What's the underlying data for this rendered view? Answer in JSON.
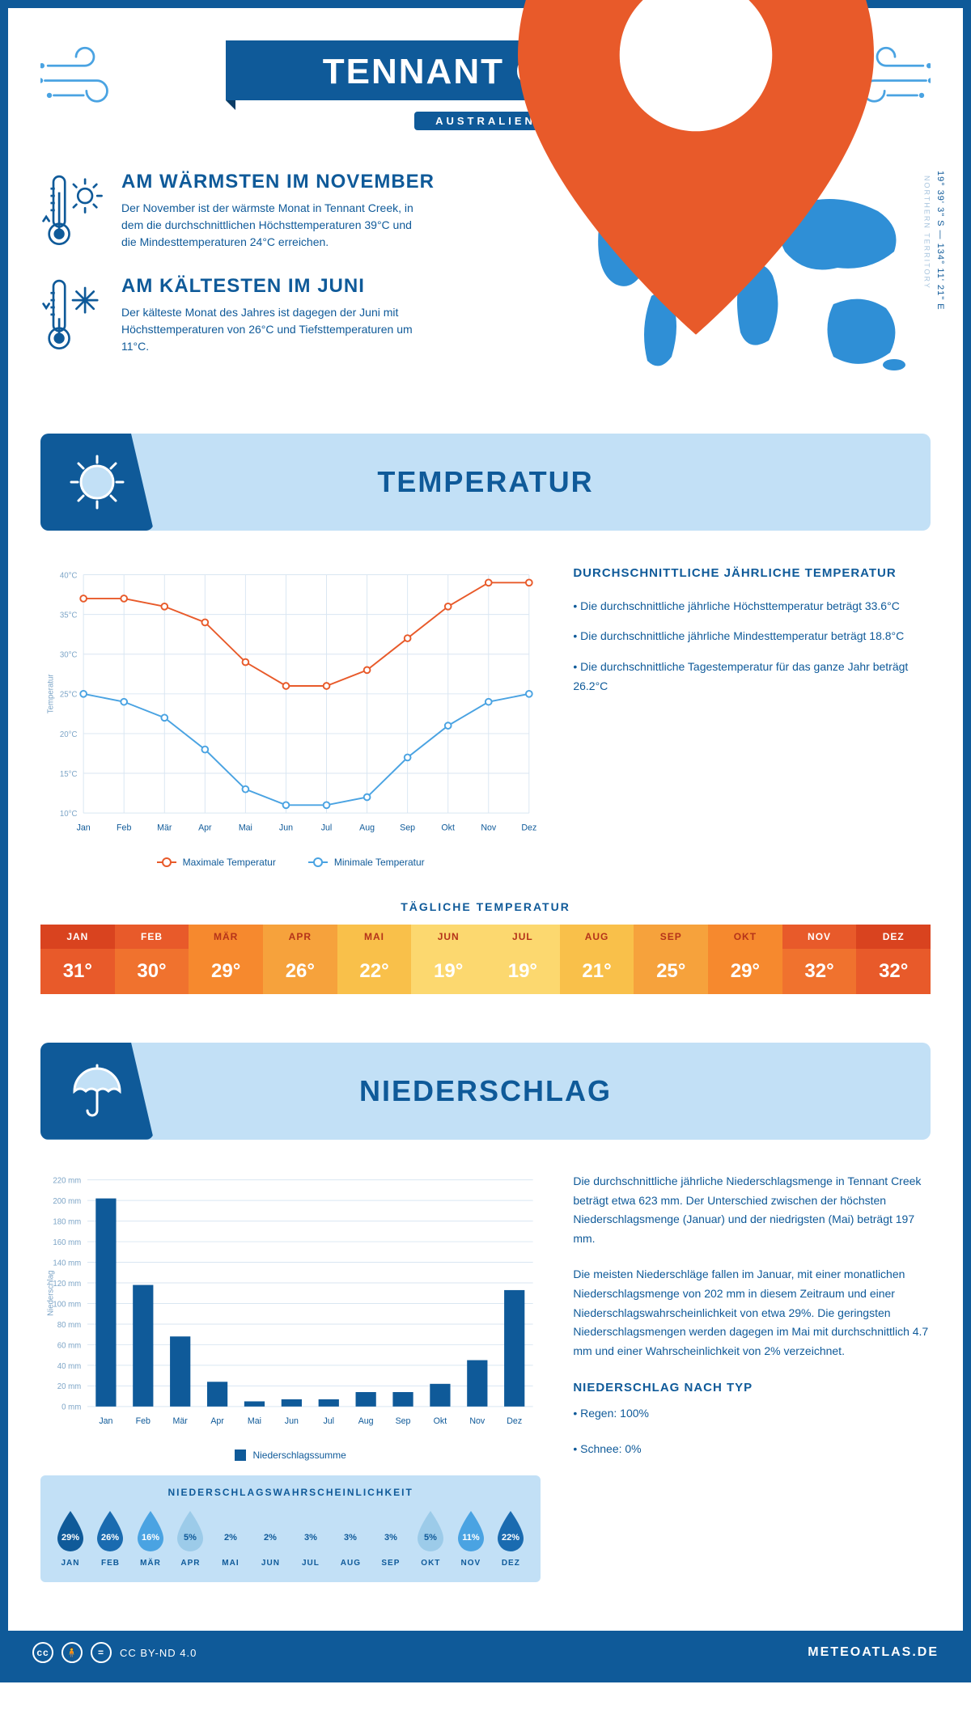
{
  "header": {
    "title": "TENNANT CREEK",
    "subtitle": "AUSTRALIEN"
  },
  "coords": {
    "lat": "19° 39' 3\" S",
    "lon": "134° 11' 21\" E",
    "region": "NORTHERN TERRITORY"
  },
  "facts": {
    "warm": {
      "title": "AM WÄRMSTEN IM NOVEMBER",
      "text": "Der November ist der wärmste Monat in Tennant Creek, in dem die durchschnittlichen Höchsttemperaturen 39°C und die Mindesttemperaturen 24°C erreichen."
    },
    "cold": {
      "title": "AM KÄLTESTEN IM JUNI",
      "text": "Der kälteste Monat des Jahres ist dagegen der Juni mit Höchsttemperaturen von 26°C und Tiefsttemperaturen um 11°C."
    }
  },
  "temperature_section": {
    "heading": "TEMPERATUR",
    "chart": {
      "months": [
        "Jan",
        "Feb",
        "Mär",
        "Apr",
        "Mai",
        "Jun",
        "Jul",
        "Aug",
        "Sep",
        "Okt",
        "Nov",
        "Dez"
      ],
      "max_series": [
        37,
        37,
        36,
        34,
        29,
        26,
        26,
        28,
        32,
        36,
        39,
        39
      ],
      "min_series": [
        25,
        24,
        22,
        18,
        13,
        11,
        11,
        12,
        17,
        21,
        24,
        25
      ],
      "ylim": [
        10,
        40
      ],
      "ytick_step": 5,
      "ytick_labels": [
        "10°C",
        "15°C",
        "20°C",
        "25°C",
        "30°C",
        "35°C",
        "40°C"
      ],
      "ylabel": "Temperatur",
      "max_color": "#e85a2a",
      "min_color": "#4aa3e2",
      "grid_color": "#d9e6f2",
      "marker_size": 4,
      "line_width": 2,
      "legend": {
        "max": "Maximale Temperatur",
        "min": "Minimale Temperatur"
      }
    },
    "side": {
      "heading": "DURCHSCHNITTLICHE JÄHRLICHE TEMPERATUR",
      "bullets": [
        "• Die durchschnittliche jährliche Höchsttemperatur beträgt 33.6°C",
        "• Die durchschnittliche jährliche Mindesttemperatur beträgt 18.8°C",
        "• Die durchschnittliche Tagestemperatur für das ganze Jahr beträgt 26.2°C"
      ]
    }
  },
  "daily_strip": {
    "heading": "TÄGLICHE TEMPERATUR",
    "months": [
      "JAN",
      "FEB",
      "MÄR",
      "APR",
      "MAI",
      "JUN",
      "JUL",
      "AUG",
      "SEP",
      "OKT",
      "NOV",
      "DEZ"
    ],
    "values": [
      "31°",
      "30°",
      "29°",
      "26°",
      "22°",
      "19°",
      "19°",
      "21°",
      "25°",
      "29°",
      "32°",
      "32°"
    ],
    "header_colors": [
      "#d9431f",
      "#e85a2a",
      "#f6892e",
      "#f6a23c",
      "#f9c04a",
      "#fcd86f",
      "#fcd86f",
      "#f9c04a",
      "#f6a23c",
      "#f6892e",
      "#e85a2a",
      "#d9431f"
    ],
    "value_colors": [
      "#e85a2a",
      "#f0722e",
      "#f6892e",
      "#f6a23c",
      "#f9c04a",
      "#fcd86f",
      "#fcd86f",
      "#f9c04a",
      "#f6a23c",
      "#f6892e",
      "#f0722e",
      "#e85a2a"
    ],
    "month_text_color": "#b5331a",
    "month_text_color_light": "#ffffff"
  },
  "precip_section": {
    "heading": "NIEDERSCHLAG",
    "chart": {
      "months": [
        "Jan",
        "Feb",
        "Mär",
        "Apr",
        "Mai",
        "Jun",
        "Jul",
        "Aug",
        "Sep",
        "Okt",
        "Nov",
        "Dez"
      ],
      "values": [
        202,
        118,
        68,
        24,
        5,
        7,
        7,
        14,
        14,
        22,
        45,
        113
      ],
      "ylim": [
        0,
        220
      ],
      "ytick_step": 20,
      "ylabel": "Niederschlag",
      "unit_suffix": " mm",
      "bar_color": "#0f5a99",
      "grid_color": "#d9e6f2",
      "legend": "Niederschlagssumme"
    },
    "text": {
      "p1": "Die durchschnittliche jährliche Niederschlagsmenge in Tennant Creek beträgt etwa 623 mm. Der Unterschied zwischen der höchsten Niederschlagsmenge (Januar) und der niedrigsten (Mai) beträgt 197 mm.",
      "p2": "Die meisten Niederschläge fallen im Januar, mit einer monatlichen Niederschlagsmenge von 202 mm in diesem Zeitraum und einer Niederschlagswahrscheinlichkeit von etwa 29%. Die geringsten Niederschlagsmengen werden dagegen im Mai mit durchschnittlich 4.7 mm und einer Wahrscheinlichkeit von 2% verzeichnet.",
      "type_heading": "NIEDERSCHLAG NACH TYP",
      "type_bullets": [
        "• Regen: 100%",
        "• Schnee: 0%"
      ]
    },
    "probability": {
      "heading": "NIEDERSCHLAGSWAHRSCHEINLICHKEIT",
      "months": [
        "JAN",
        "FEB",
        "MÄR",
        "APR",
        "MAI",
        "JUN",
        "JUL",
        "AUG",
        "SEP",
        "OKT",
        "NOV",
        "DEZ"
      ],
      "values": [
        "29%",
        "26%",
        "16%",
        "5%",
        "2%",
        "2%",
        "3%",
        "3%",
        "3%",
        "5%",
        "11%",
        "22%"
      ],
      "colors": [
        "#0f5a99",
        "#1a6bb0",
        "#4aa3e2",
        "#9ccbe9",
        "#c2e0f6",
        "#c2e0f6",
        "#c2e0f6",
        "#c2e0f6",
        "#c2e0f6",
        "#9ccbe9",
        "#4aa3e2",
        "#1a6bb0"
      ],
      "text_colors": [
        "#ffffff",
        "#ffffff",
        "#ffffff",
        "#0f5a99",
        "#0f5a99",
        "#0f5a99",
        "#0f5a99",
        "#0f5a99",
        "#0f5a99",
        "#0f5a99",
        "#ffffff",
        "#ffffff"
      ]
    }
  },
  "footer": {
    "license": "CC BY-ND 4.0",
    "brand": "METEOATLAS.DE"
  },
  "palette": {
    "primary": "#0f5a99",
    "light_blue": "#c2e0f6",
    "mid_blue": "#4aa3e2"
  }
}
